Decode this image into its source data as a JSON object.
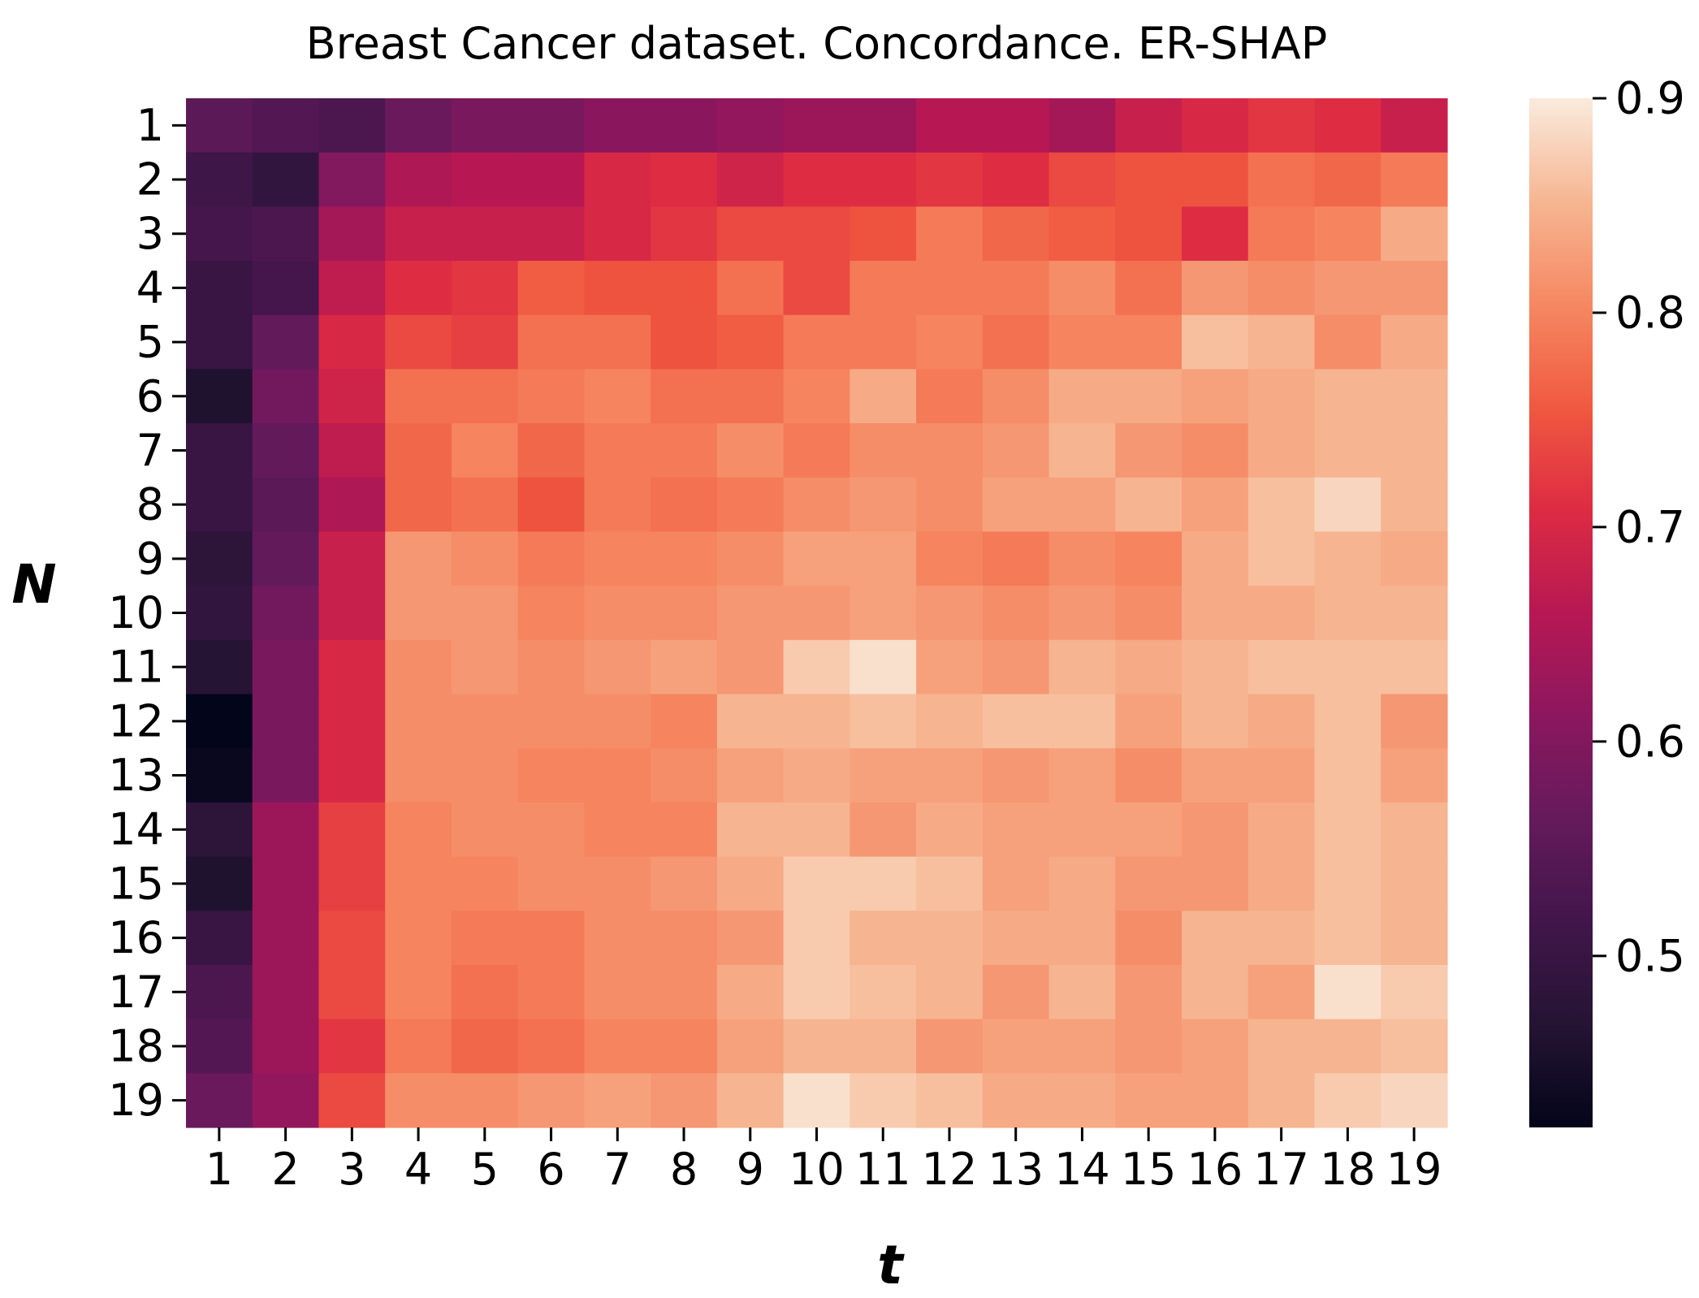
{
  "chart_data": {
    "type": "heatmap",
    "title": "Breast Cancer  dataset. Concordance. ER-SHAP",
    "xlabel": "t",
    "ylabel": "N",
    "x_categories": [
      "1",
      "2",
      "3",
      "4",
      "5",
      "6",
      "7",
      "8",
      "9",
      "10",
      "11",
      "12",
      "13",
      "14",
      "15",
      "16",
      "17",
      "18",
      "19"
    ],
    "y_categories": [
      "1",
      "2",
      "3",
      "4",
      "5",
      "6",
      "7",
      "8",
      "9",
      "10",
      "11",
      "12",
      "13",
      "14",
      "15",
      "16",
      "17",
      "18",
      "19"
    ],
    "colorbar": {
      "min": 0.42,
      "max": 0.9,
      "ticks": [
        0.5,
        0.6,
        0.7,
        0.8,
        0.9
      ],
      "tick_labels": [
        "0.5",
        "0.6",
        "0.7",
        "0.8",
        "0.9"
      ],
      "colormap": "rocket"
    },
    "values": [
      [
        0.55,
        0.54,
        0.53,
        0.57,
        0.59,
        0.59,
        0.61,
        0.61,
        0.62,
        0.63,
        0.63,
        0.66,
        0.66,
        0.64,
        0.68,
        0.7,
        0.72,
        0.71,
        0.68
      ],
      [
        0.51,
        0.49,
        0.6,
        0.65,
        0.66,
        0.66,
        0.7,
        0.71,
        0.69,
        0.71,
        0.71,
        0.72,
        0.71,
        0.74,
        0.75,
        0.75,
        0.78,
        0.77,
        0.79
      ],
      [
        0.52,
        0.53,
        0.64,
        0.68,
        0.68,
        0.68,
        0.7,
        0.72,
        0.74,
        0.74,
        0.75,
        0.79,
        0.77,
        0.76,
        0.75,
        0.71,
        0.79,
        0.8,
        0.84
      ],
      [
        0.5,
        0.52,
        0.67,
        0.71,
        0.72,
        0.76,
        0.75,
        0.75,
        0.78,
        0.74,
        0.79,
        0.79,
        0.79,
        0.81,
        0.78,
        0.82,
        0.81,
        0.82,
        0.82
      ],
      [
        0.5,
        0.56,
        0.7,
        0.74,
        0.73,
        0.78,
        0.78,
        0.75,
        0.76,
        0.79,
        0.79,
        0.8,
        0.78,
        0.8,
        0.8,
        0.86,
        0.85,
        0.81,
        0.84
      ],
      [
        0.46,
        0.58,
        0.69,
        0.78,
        0.78,
        0.79,
        0.8,
        0.78,
        0.78,
        0.8,
        0.84,
        0.79,
        0.81,
        0.84,
        0.84,
        0.83,
        0.84,
        0.85,
        0.85
      ],
      [
        0.5,
        0.56,
        0.67,
        0.77,
        0.8,
        0.77,
        0.79,
        0.79,
        0.81,
        0.79,
        0.81,
        0.81,
        0.82,
        0.85,
        0.82,
        0.81,
        0.84,
        0.85,
        0.85
      ],
      [
        0.5,
        0.55,
        0.65,
        0.77,
        0.78,
        0.75,
        0.79,
        0.78,
        0.79,
        0.81,
        0.82,
        0.81,
        0.83,
        0.83,
        0.85,
        0.83,
        0.86,
        0.88,
        0.85
      ],
      [
        0.48,
        0.56,
        0.68,
        0.82,
        0.81,
        0.79,
        0.8,
        0.8,
        0.81,
        0.83,
        0.83,
        0.8,
        0.79,
        0.81,
        0.8,
        0.84,
        0.86,
        0.85,
        0.84
      ],
      [
        0.49,
        0.58,
        0.68,
        0.82,
        0.82,
        0.8,
        0.81,
        0.81,
        0.82,
        0.82,
        0.83,
        0.82,
        0.81,
        0.82,
        0.81,
        0.84,
        0.84,
        0.85,
        0.85
      ],
      [
        0.47,
        0.59,
        0.7,
        0.81,
        0.82,
        0.81,
        0.82,
        0.83,
        0.82,
        0.87,
        0.89,
        0.83,
        0.82,
        0.85,
        0.84,
        0.85,
        0.86,
        0.86,
        0.86
      ],
      [
        0.42,
        0.59,
        0.7,
        0.81,
        0.81,
        0.81,
        0.81,
        0.8,
        0.85,
        0.85,
        0.86,
        0.85,
        0.86,
        0.86,
        0.83,
        0.85,
        0.84,
        0.86,
        0.82
      ],
      [
        0.43,
        0.59,
        0.7,
        0.81,
        0.81,
        0.8,
        0.8,
        0.81,
        0.83,
        0.84,
        0.83,
        0.83,
        0.82,
        0.83,
        0.81,
        0.83,
        0.83,
        0.86,
        0.83
      ],
      [
        0.48,
        0.63,
        0.73,
        0.8,
        0.81,
        0.81,
        0.8,
        0.8,
        0.85,
        0.85,
        0.82,
        0.84,
        0.83,
        0.83,
        0.83,
        0.82,
        0.84,
        0.86,
        0.85
      ],
      [
        0.46,
        0.63,
        0.73,
        0.8,
        0.8,
        0.81,
        0.81,
        0.82,
        0.84,
        0.87,
        0.87,
        0.86,
        0.83,
        0.84,
        0.82,
        0.82,
        0.84,
        0.86,
        0.85
      ],
      [
        0.5,
        0.63,
        0.74,
        0.8,
        0.79,
        0.79,
        0.81,
        0.81,
        0.82,
        0.87,
        0.85,
        0.85,
        0.84,
        0.84,
        0.81,
        0.85,
        0.85,
        0.86,
        0.85
      ],
      [
        0.53,
        0.63,
        0.74,
        0.8,
        0.78,
        0.79,
        0.81,
        0.81,
        0.84,
        0.87,
        0.86,
        0.85,
        0.82,
        0.85,
        0.82,
        0.85,
        0.83,
        0.89,
        0.87
      ],
      [
        0.54,
        0.63,
        0.72,
        0.79,
        0.77,
        0.78,
        0.8,
        0.8,
        0.83,
        0.85,
        0.85,
        0.82,
        0.83,
        0.83,
        0.82,
        0.83,
        0.85,
        0.85,
        0.86
      ],
      [
        0.57,
        0.62,
        0.74,
        0.81,
        0.81,
        0.82,
        0.83,
        0.82,
        0.85,
        0.89,
        0.87,
        0.86,
        0.84,
        0.84,
        0.83,
        0.83,
        0.85,
        0.87,
        0.88
      ]
    ]
  }
}
